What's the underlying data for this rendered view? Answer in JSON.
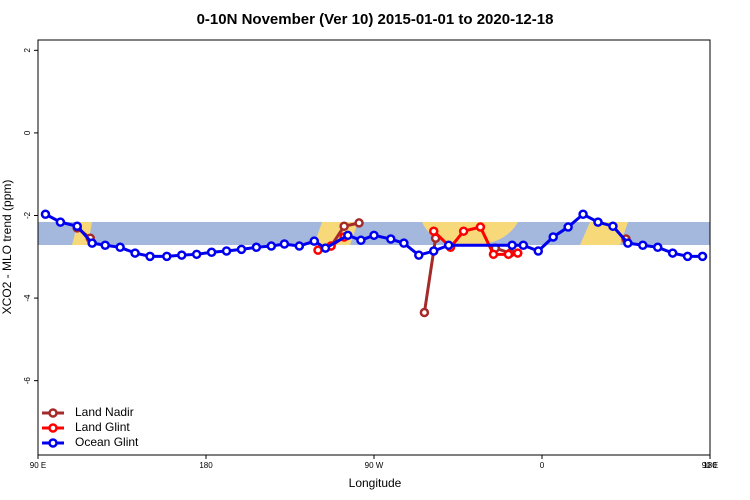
{
  "chart_data": {
    "type": "line",
    "title": "0-10N November (Ver 10)   2015-01-01 to 2020-12-18",
    "x_label": "Longitude",
    "y_label": "XCO2 - MLO trend (ppm)",
    "xlim": [
      90,
      450
    ],
    "ylim": [
      -7.8,
      2.25
    ],
    "xticks": [
      {
        "value": 90,
        "label": "90 E"
      },
      {
        "value": 180,
        "label": "180"
      },
      {
        "value": 270,
        "label": "90 W"
      },
      {
        "value": 360,
        "label": "0"
      },
      {
        "value": 450,
        "label": "90 E"
      },
      {
        "value": 540,
        "label": "180"
      }
    ],
    "yticks": [
      -6,
      -4,
      -2,
      0,
      2
    ],
    "legend": "bottom-left",
    "series": [
      {
        "name": "Land Nadir",
        "color": "#a52a2a",
        "x": [
          111,
          118,
          null,
          247,
          254,
          262,
          null,
          297,
          303,
          null,
          335,
          343,
          null,
          405
        ],
        "values": [
          -2.3,
          -2.55,
          null,
          -2.74,
          -2.26,
          -2.18,
          null,
          -4.35,
          -2.55,
          null,
          -2.79,
          -2.91,
          null,
          -2.57
        ]
      },
      {
        "name": "Land Glint",
        "color": "#ff0000",
        "x": [
          240,
          247,
          254,
          null,
          302,
          311,
          318,
          327,
          334,
          342,
          347
        ],
        "values": [
          -2.84,
          -2.74,
          -2.52,
          null,
          -2.38,
          -2.77,
          -2.38,
          -2.28,
          -2.94,
          -2.94,
          -2.91
        ]
      },
      {
        "name": "Ocean Glint",
        "color": "#0000ee",
        "x": [
          94,
          102,
          111,
          119,
          126,
          134,
          142,
          150,
          159,
          167,
          175,
          183,
          191,
          199,
          207,
          215,
          222,
          230,
          238,
          244,
          256,
          263,
          270,
          279,
          286,
          294,
          302,
          310,
          344,
          350,
          358,
          366,
          374,
          382,
          390,
          398,
          406,
          414,
          422,
          430,
          438,
          446
        ],
        "values": [
          -1.97,
          -2.16,
          -2.26,
          -2.67,
          -2.72,
          -2.77,
          -2.91,
          -2.99,
          -2.99,
          -2.96,
          -2.94,
          -2.89,
          -2.86,
          -2.82,
          -2.77,
          -2.74,
          -2.69,
          -2.74,
          -2.62,
          -2.79,
          -2.48,
          -2.6,
          -2.48,
          -2.57,
          -2.67,
          -2.96,
          -2.86,
          -2.72,
          -2.72,
          -2.72,
          -2.86,
          -2.52,
          -2.28,
          -1.97,
          -2.16,
          -2.26,
          -2.67,
          -2.72,
          -2.77,
          -2.91,
          -2.99,
          -2.99
        ]
      }
    ]
  }
}
